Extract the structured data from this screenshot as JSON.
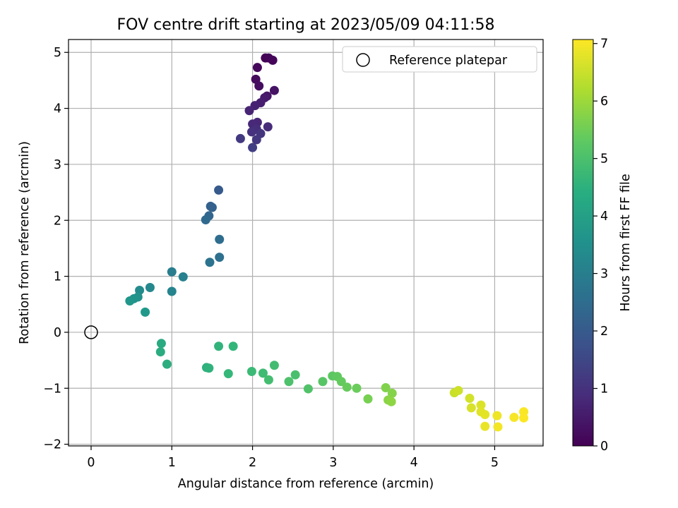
{
  "chart_data": {
    "type": "scatter",
    "title": "FOV centre drift starting at 2023/05/09 04:11:58",
    "xlabel": "Angular distance from reference (arcmin)",
    "ylabel": "Rotation from reference (arcmin)",
    "xlim": [
      -0.28,
      5.6
    ],
    "ylim": [
      -2.03,
      5.23
    ],
    "xticks": [
      0,
      1,
      2,
      3,
      4,
      5
    ],
    "yticks": [
      -2,
      -1,
      0,
      1,
      2,
      3,
      4,
      5
    ],
    "grid": true,
    "legend": {
      "position": "top-right",
      "entries": [
        "Reference platepar"
      ]
    },
    "reference_point": {
      "x": 0,
      "y": 0,
      "label": "Reference platepar"
    },
    "colorbar": {
      "label": "Hours from first FF file",
      "colormap": "viridis",
      "range": [
        0,
        7.07
      ],
      "ticks": [
        0,
        1,
        2,
        3,
        4,
        5,
        6,
        7
      ]
    },
    "points": [
      {
        "x": 2.16,
        "y": 4.9,
        "h": 0.03
      },
      {
        "x": 2.2,
        "y": 4.9,
        "h": 0.07
      },
      {
        "x": 2.25,
        "y": 4.86,
        "h": 0.11
      },
      {
        "x": 2.06,
        "y": 4.73,
        "h": 0.15
      },
      {
        "x": 2.04,
        "y": 4.52,
        "h": 0.2
      },
      {
        "x": 2.08,
        "y": 4.4,
        "h": 0.25
      },
      {
        "x": 2.27,
        "y": 4.32,
        "h": 0.35
      },
      {
        "x": 2.18,
        "y": 4.22,
        "h": 0.42
      },
      {
        "x": 2.15,
        "y": 4.19,
        "h": 0.5
      },
      {
        "x": 2.1,
        "y": 4.1,
        "h": 0.58
      },
      {
        "x": 2.03,
        "y": 4.05,
        "h": 0.64
      },
      {
        "x": 1.96,
        "y": 3.96,
        "h": 0.7
      },
      {
        "x": 2.06,
        "y": 3.75,
        "h": 0.76
      },
      {
        "x": 2.0,
        "y": 3.72,
        "h": 0.82
      },
      {
        "x": 2.19,
        "y": 3.67,
        "h": 0.88
      },
      {
        "x": 2.05,
        "y": 3.63,
        "h": 0.94
      },
      {
        "x": 1.99,
        "y": 3.58,
        "h": 1.0
      },
      {
        "x": 2.1,
        "y": 3.55,
        "h": 1.06
      },
      {
        "x": 2.05,
        "y": 3.44,
        "h": 1.12
      },
      {
        "x": 1.85,
        "y": 3.46,
        "h": 1.2
      },
      {
        "x": 2.0,
        "y": 3.3,
        "h": 1.3
      },
      {
        "x": 1.58,
        "y": 2.54,
        "h": 2.0
      },
      {
        "x": 1.48,
        "y": 2.25,
        "h": 2.15
      },
      {
        "x": 1.5,
        "y": 2.23,
        "h": 2.2
      },
      {
        "x": 1.46,
        "y": 2.08,
        "h": 2.3
      },
      {
        "x": 1.42,
        "y": 2.01,
        "h": 2.4
      },
      {
        "x": 1.59,
        "y": 1.66,
        "h": 2.5
      },
      {
        "x": 1.59,
        "y": 1.34,
        "h": 2.6
      },
      {
        "x": 1.47,
        "y": 1.25,
        "h": 2.7
      },
      {
        "x": 1.0,
        "y": 1.08,
        "h": 3.0
      },
      {
        "x": 1.14,
        "y": 0.99,
        "h": 3.1
      },
      {
        "x": 0.73,
        "y": 0.8,
        "h": 3.3
      },
      {
        "x": 0.6,
        "y": 0.75,
        "h": 3.4
      },
      {
        "x": 1.0,
        "y": 0.73,
        "h": 3.2
      },
      {
        "x": 0.58,
        "y": 0.63,
        "h": 3.6
      },
      {
        "x": 0.53,
        "y": 0.6,
        "h": 3.65
      },
      {
        "x": 0.48,
        "y": 0.56,
        "h": 3.7
      },
      {
        "x": 0.67,
        "y": 0.36,
        "h": 3.8
      },
      {
        "x": 0.87,
        "y": -0.2,
        "h": 4.3
      },
      {
        "x": 0.86,
        "y": -0.35,
        "h": 4.35
      },
      {
        "x": 0.94,
        "y": -0.57,
        "h": 4.4
      },
      {
        "x": 1.43,
        "y": -0.63,
        "h": 4.5
      },
      {
        "x": 1.46,
        "y": -0.64,
        "h": 4.55
      },
      {
        "x": 1.58,
        "y": -0.25,
        "h": 4.6
      },
      {
        "x": 1.76,
        "y": -0.25,
        "h": 4.65
      },
      {
        "x": 1.7,
        "y": -0.74,
        "h": 4.7
      },
      {
        "x": 1.99,
        "y": -0.7,
        "h": 4.8
      },
      {
        "x": 2.13,
        "y": -0.73,
        "h": 4.85
      },
      {
        "x": 2.27,
        "y": -0.59,
        "h": 4.9
      },
      {
        "x": 2.2,
        "y": -0.85,
        "h": 4.92
      },
      {
        "x": 2.53,
        "y": -0.76,
        "h": 5.0
      },
      {
        "x": 2.45,
        "y": -0.88,
        "h": 5.05
      },
      {
        "x": 2.69,
        "y": -1.01,
        "h": 5.1
      },
      {
        "x": 2.87,
        "y": -0.88,
        "h": 5.2
      },
      {
        "x": 2.99,
        "y": -0.78,
        "h": 5.25
      },
      {
        "x": 3.05,
        "y": -0.79,
        "h": 5.3
      },
      {
        "x": 3.1,
        "y": -0.88,
        "h": 5.35
      },
      {
        "x": 3.17,
        "y": -0.98,
        "h": 5.4
      },
      {
        "x": 3.29,
        "y": -1.0,
        "h": 5.45
      },
      {
        "x": 3.43,
        "y": -1.19,
        "h": 5.6
      },
      {
        "x": 3.65,
        "y": -0.99,
        "h": 5.7
      },
      {
        "x": 3.73,
        "y": -1.09,
        "h": 5.75
      },
      {
        "x": 3.68,
        "y": -1.21,
        "h": 5.8
      },
      {
        "x": 3.72,
        "y": -1.24,
        "h": 5.85
      },
      {
        "x": 4.5,
        "y": -1.08,
        "h": 6.5
      },
      {
        "x": 4.55,
        "y": -1.04,
        "h": 6.55
      },
      {
        "x": 4.69,
        "y": -1.18,
        "h": 6.6
      },
      {
        "x": 4.71,
        "y": -1.35,
        "h": 6.65
      },
      {
        "x": 4.83,
        "y": -1.3,
        "h": 6.7
      },
      {
        "x": 4.83,
        "y": -1.42,
        "h": 6.75
      },
      {
        "x": 4.88,
        "y": -1.47,
        "h": 6.8
      },
      {
        "x": 4.88,
        "y": -1.68,
        "h": 6.85
      },
      {
        "x": 5.03,
        "y": -1.49,
        "h": 6.9
      },
      {
        "x": 5.04,
        "y": -1.69,
        "h": 6.95
      },
      {
        "x": 5.24,
        "y": -1.52,
        "h": 7.0
      },
      {
        "x": 5.36,
        "y": -1.42,
        "h": 7.03
      },
      {
        "x": 5.36,
        "y": -1.53,
        "h": 7.06
      }
    ]
  }
}
